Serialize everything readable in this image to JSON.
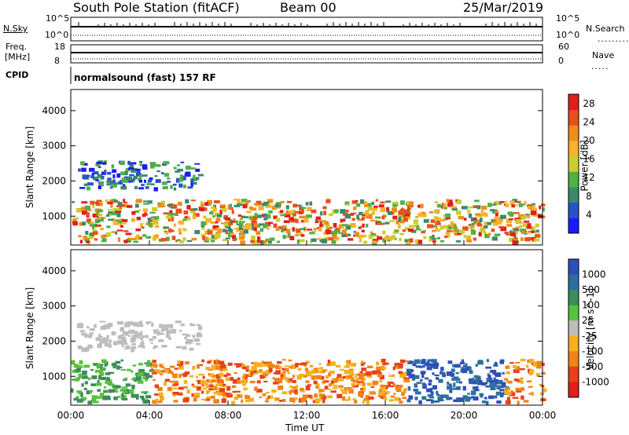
{
  "header": {
    "station": "South Pole Station (fitACF)",
    "beam": "Beam 00",
    "date": "25/Mar/2019",
    "cpid_label": "CPID",
    "cpid_text": "normalsound (fast) 157 RF"
  },
  "panels": {
    "nsky": {
      "label": "N.Sky",
      "top_tick": "10^5",
      "bottom_tick": "10^0"
    },
    "nsearch": {
      "label": "N.Search",
      "top_tick": "10^5",
      "bottom_tick": "10^0"
    },
    "freq": {
      "label_line1": "Freq.",
      "label_line2": "[MHz]",
      "top_tick": "18",
      "bottom_tick": "8"
    },
    "nave": {
      "label": "Nave",
      "top_tick": "60",
      "bottom_tick": "0"
    }
  },
  "chart_data": [
    {
      "type": "heatmap",
      "title": "Power",
      "xlabel": "Time UT",
      "ylabel": "Slant Range [km]",
      "x_ticks": [
        "00:00",
        "04:00",
        "08:00",
        "12:00",
        "16:00",
        "20:00",
        "00:00"
      ],
      "xlim_hours": [
        0,
        24
      ],
      "y_ticks": [
        1000,
        2000,
        3000,
        4000
      ],
      "ylim": [
        180,
        4600
      ],
      "colorbar": {
        "label": "Power [dB]",
        "ticks": [
          4,
          8,
          12,
          16,
          20,
          24,
          28
        ],
        "range": [
          0,
          30
        ],
        "colors": [
          "#1a1aff",
          "#2a52c8",
          "#3a8a6a",
          "#4fb048",
          "#c8d030",
          "#f7b32a",
          "#f08c18",
          "#e8501a",
          "#e11d1d"
        ]
      },
      "echo_regions": [
        {
          "t0": 0.0,
          "t1": 24.0,
          "r0": 300,
          "r1": 1500,
          "desc": "near-range scatter band"
        },
        {
          "t0": 0.3,
          "t1": 6.5,
          "r0": 1800,
          "r1": 2600,
          "desc": "far-range scatter"
        }
      ]
    },
    {
      "type": "heatmap",
      "title": "Velocity",
      "xlabel": "Time UT",
      "ylabel": "Slant Range [km]",
      "x_ticks": [
        "00:00",
        "04:00",
        "08:00",
        "12:00",
        "16:00",
        "20:00",
        "00:00"
      ],
      "xlim_hours": [
        0,
        24
      ],
      "y_ticks": [
        1000,
        2000,
        3000,
        4000
      ],
      "ylim": [
        180,
        4600
      ],
      "colorbar": {
        "label": "Velocity [m s^-1]",
        "tick_labels": [
          "1000",
          "500",
          "100",
          "25",
          "-25",
          "-100",
          "-500",
          "-1000"
        ],
        "colors": [
          "#2e4fb8",
          "#2e6f9e",
          "#3d8c5a",
          "#59c23c",
          "#bdbdbd",
          "#f5b01e",
          "#f08418",
          "#e8401a",
          "#e11d1d"
        ]
      },
      "echo_regions": [
        {
          "t0": 0.0,
          "t1": 24.0,
          "r0": 300,
          "r1": 1500,
          "desc": "near-range scatter band"
        },
        {
          "t0": 0.3,
          "t1": 6.5,
          "r0": 1800,
          "r1": 2600,
          "desc": "far-range scatter"
        }
      ]
    }
  ]
}
